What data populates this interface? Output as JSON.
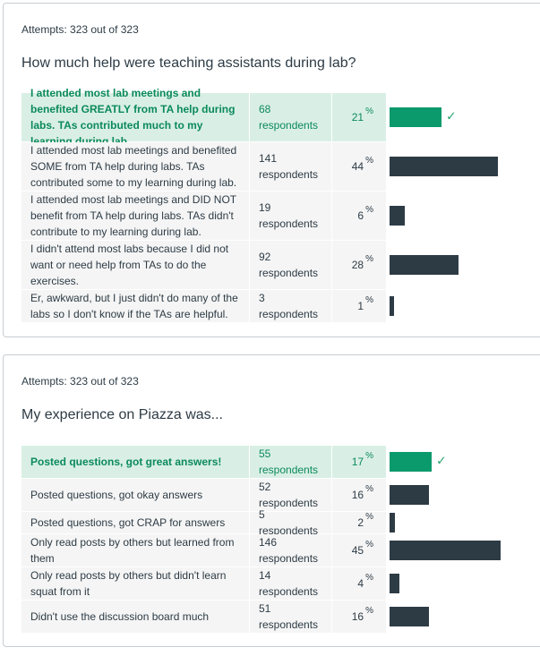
{
  "quiz": [
    {
      "attempts": "Attempts: 323 out of 323",
      "question": "How much help were teaching assistants during lab?",
      "answers": [
        {
          "text": "I attended most lab meetings and benefited GREATLY from TA help during labs. TAs contributed much to my learning during lab.",
          "respondents": "68 respondents",
          "percent": "21",
          "correct": true
        },
        {
          "text": "I attended most lab meetings and benefited SOME from TA help during labs. TAs contributed some to my learning during lab.",
          "respondents": "141 respondents",
          "percent": "44",
          "correct": false
        },
        {
          "text": "I attended most lab meetings and DID NOT benefit from TA help during labs. TAs didn't contribute to my learning during lab.",
          "respondents": "19 respondents",
          "percent": "6",
          "correct": false
        },
        {
          "text": "I didn't attend most labs because I did not want or need help from TAs to do the exercises.",
          "respondents": "92 respondents",
          "percent": "28",
          "correct": false
        },
        {
          "text": "Er, awkward, but I just didn't do many of the labs so I don't know if the TAs are helpful.",
          "respondents": "3 respondents",
          "percent": "1",
          "correct": false
        }
      ]
    },
    {
      "attempts": "Attempts: 323 out of 323",
      "question": "My experience on Piazza was...",
      "answers": [
        {
          "text": "Posted questions, got great answers!",
          "respondents": "55 respondents",
          "percent": "17",
          "correct": true
        },
        {
          "text": "Posted questions, got okay answers",
          "respondents": "52 respondents",
          "percent": "16",
          "correct": false
        },
        {
          "text": "Posted questions, got CRAP for answers",
          "respondents": "5 respondents",
          "percent": "2",
          "correct": false
        },
        {
          "text": "Only read posts by others but learned from them",
          "respondents": "146 respondents",
          "percent": "45",
          "correct": false
        },
        {
          "text": "Only read posts by others but didn't learn squat from it",
          "respondents": "14 respondents",
          "percent": "4",
          "correct": false
        },
        {
          "text": "Didn't use the discussion board much",
          "respondents": "51 respondents",
          "percent": "16",
          "correct": false
        }
      ]
    }
  ],
  "percent_symbol": "%",
  "colors": {
    "correct_bar": "#0b9a6b",
    "bar": "#2d3b45",
    "correct_row": "#d9efe5",
    "row": "#f5f5f5"
  },
  "icons": {
    "correct": "checkmark-icon"
  }
}
